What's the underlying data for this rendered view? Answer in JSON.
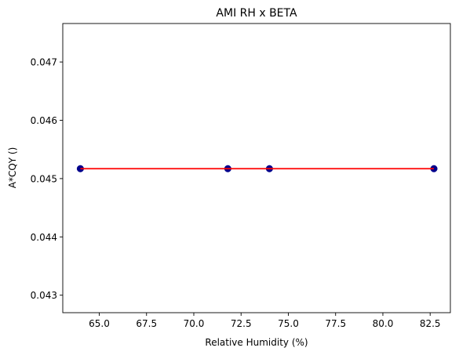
{
  "chart_data": {
    "type": "scatter",
    "title": "AMI RH x BETA",
    "xlabel": "Relative Humidity (%)",
    "ylabel": "A*CQY ()",
    "xlim": [
      63.07,
      83.57
    ],
    "ylim": [
      0.0427,
      0.04766
    ],
    "xticks": [
      65.0,
      67.5,
      70.0,
      72.5,
      75.0,
      77.5,
      80.0,
      82.5
    ],
    "xtick_labels": [
      "65.0",
      "67.5",
      "70.0",
      "72.5",
      "75.0",
      "77.5",
      "80.0",
      "82.5"
    ],
    "yticks": [
      0.043,
      0.044,
      0.045,
      0.046,
      0.047
    ],
    "ytick_labels": [
      "0.043",
      "0.044",
      "0.045",
      "0.046",
      "0.047"
    ],
    "grid": false,
    "legend": "none",
    "series": [
      {
        "kind": "scatter",
        "color": "#00008b",
        "x": [
          64.0,
          71.8,
          74.0,
          82.7
        ],
        "y": [
          0.04517,
          0.04517,
          0.04517,
          0.04517
        ]
      },
      {
        "kind": "line",
        "color": "#ff0000",
        "x": [
          64.0,
          82.7
        ],
        "y": [
          0.04517,
          0.04517
        ]
      }
    ]
  }
}
